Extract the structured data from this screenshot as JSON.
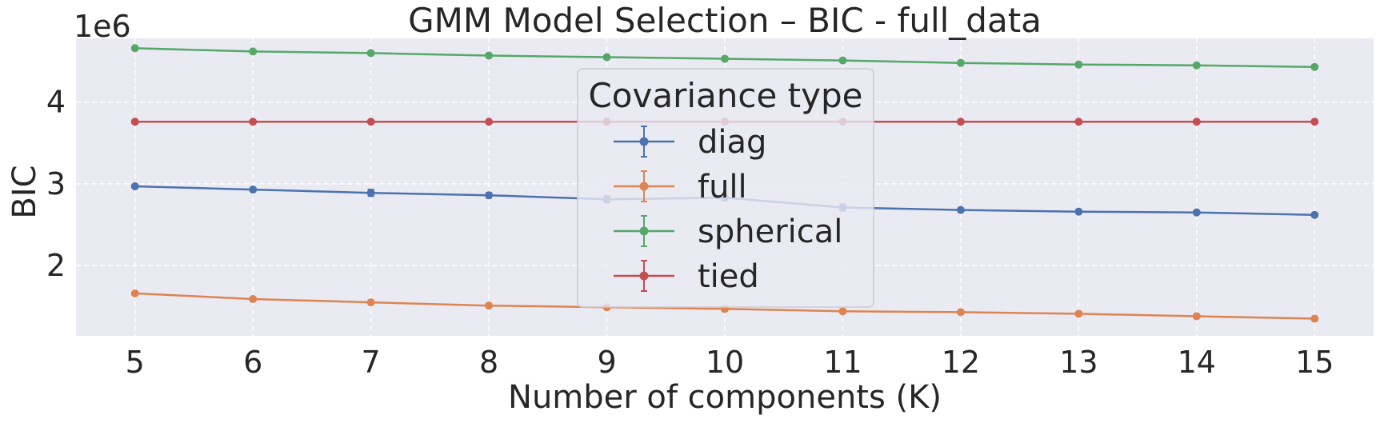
{
  "chart_data": {
    "type": "line",
    "title": "GMM Model Selection – BIC - full_data",
    "xlabel": "Number of components (K)",
    "ylabel": "BIC",
    "y_scale_label": "1e6",
    "x": [
      5,
      6,
      7,
      8,
      9,
      10,
      11,
      12,
      13,
      14,
      15
    ],
    "xlim": [
      4.5,
      15.5
    ],
    "ylim": [
      1.14,
      4.78
    ],
    "x_ticks": [
      5,
      6,
      7,
      8,
      9,
      10,
      11,
      12,
      13,
      14,
      15
    ],
    "y_ticks": [
      2,
      3,
      4
    ],
    "grid": true,
    "legend": {
      "title": "Covariance type",
      "placement": "top-center"
    },
    "series": [
      {
        "name": "diag",
        "color": "#4c72b0",
        "values": [
          2.97,
          2.93,
          2.89,
          2.86,
          2.81,
          2.83,
          2.71,
          2.68,
          2.66,
          2.65,
          2.62
        ],
        "err": [
          0.01,
          0.01,
          0.04,
          0.03,
          0.04,
          0.01,
          0.04,
          0.01,
          0.01,
          0.01,
          0.01
        ]
      },
      {
        "name": "full",
        "color": "#dd8452",
        "values": [
          1.66,
          1.59,
          1.55,
          1.51,
          1.49,
          1.47,
          1.44,
          1.43,
          1.41,
          1.38,
          1.35
        ],
        "err": [
          0.01,
          0.01,
          0.01,
          0.01,
          0.01,
          0.03,
          0.01,
          0.01,
          0.02,
          0.01,
          0.01
        ]
      },
      {
        "name": "spherical",
        "color": "#55a868",
        "values": [
          4.66,
          4.62,
          4.6,
          4.57,
          4.55,
          4.53,
          4.51,
          4.48,
          4.46,
          4.45,
          4.43
        ],
        "err": [
          0.01,
          0.01,
          0.01,
          0.01,
          0.01,
          0.01,
          0.01,
          0.01,
          0.01,
          0.01,
          0.01
        ]
      },
      {
        "name": "tied",
        "color": "#c44e52",
        "values": [
          3.76,
          3.76,
          3.76,
          3.76,
          3.76,
          3.76,
          3.76,
          3.76,
          3.76,
          3.76,
          3.76
        ],
        "err": [
          0.01,
          0.01,
          0.01,
          0.01,
          0.01,
          0.01,
          0.01,
          0.01,
          0.01,
          0.01,
          0.01
        ]
      }
    ]
  }
}
